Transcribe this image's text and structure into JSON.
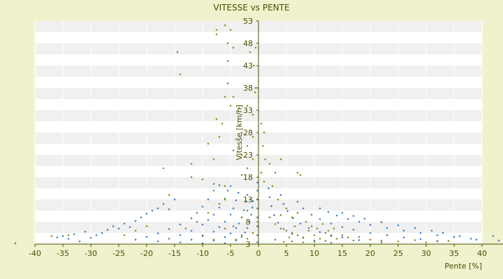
{
  "chart_data": {
    "type": "scatter",
    "title": "VITESSE vs PENTE",
    "xlabel": "Pente [%]",
    "ylabel": "Vitesse [km/h]",
    "xlim": [
      -40,
      40
    ],
    "ylim": [
      3,
      53
    ],
    "x_ticks": [
      -40,
      -35,
      -30,
      -25,
      -20,
      -15,
      -10,
      -5,
      0,
      5,
      10,
      15,
      20,
      25,
      30,
      35,
      40
    ],
    "y_ticks": [
      3,
      8,
      13,
      18,
      23,
      28,
      33,
      38,
      43,
      48,
      53
    ],
    "grid": true,
    "legend": "none",
    "colors": {
      "background": "#eff2cd",
      "plot_band_light": "#ffffff",
      "plot_band_dark": "#f0f0f0",
      "axis": "#4d4d00",
      "text": "#4d4d00",
      "series_blue": "#3a7fc4",
      "series_olive": "#8a8a1a"
    },
    "series": [
      {
        "marker": "diamond",
        "color": "#3a7fc4",
        "points": [
          [
            -43.5,
            3.2
          ],
          [
            -36,
            4.5
          ],
          [
            -35,
            4.8
          ],
          [
            -34,
            4.2
          ],
          [
            -33,
            5.2
          ],
          [
            -32,
            3.6
          ],
          [
            -31,
            5.8
          ],
          [
            -30,
            4.4
          ],
          [
            -29,
            5.0
          ],
          [
            -28,
            5.5
          ],
          [
            -27,
            6.2
          ],
          [
            -26,
            7.0
          ],
          [
            -25,
            6.5
          ],
          [
            -24,
            7.6
          ],
          [
            -23,
            6.8
          ],
          [
            -22,
            8.2
          ],
          [
            -21,
            9.0
          ],
          [
            -20,
            9.8
          ],
          [
            -19,
            10.5
          ],
          [
            -18,
            11.0
          ],
          [
            -17,
            12.0
          ],
          [
            -16,
            10.8
          ],
          [
            -15,
            13.0
          ],
          [
            -22,
            4.0
          ],
          [
            -20,
            4.6
          ],
          [
            -18,
            5.4
          ],
          [
            -16,
            6.4
          ],
          [
            -14,
            7.4
          ],
          [
            -12,
            8.8
          ],
          [
            -11,
            10.0
          ],
          [
            -10,
            11.4
          ],
          [
            -9,
            13.0
          ],
          [
            -8,
            15.0
          ],
          [
            -7,
            16.2
          ],
          [
            -18,
            3.6
          ],
          [
            -16,
            4.2
          ],
          [
            -14,
            5.0
          ],
          [
            -12,
            6.0
          ],
          [
            -10,
            7.4
          ],
          [
            -9,
            8.4
          ],
          [
            -8,
            9.6
          ],
          [
            -7,
            11.2
          ],
          [
            -6,
            13.2
          ],
          [
            -5.5,
            15.0
          ],
          [
            -5,
            16.0
          ],
          [
            -14,
            3.4
          ],
          [
            -12,
            4.0
          ],
          [
            -10,
            4.8
          ],
          [
            -8,
            5.8
          ],
          [
            -7,
            6.8
          ],
          [
            -6,
            8.0
          ],
          [
            -5,
            9.6
          ],
          [
            -4.5,
            11.0
          ],
          [
            -4,
            12.8
          ],
          [
            -3.6,
            14.5
          ],
          [
            -10,
            3.2
          ],
          [
            -8,
            3.8
          ],
          [
            -6,
            4.6
          ],
          [
            -5,
            5.4
          ],
          [
            -4,
            6.6
          ],
          [
            -3.5,
            7.6
          ],
          [
            -3,
            9.0
          ],
          [
            -2.6,
            10.6
          ],
          [
            -2.2,
            12.6
          ],
          [
            -2,
            14.0
          ],
          [
            -6,
            3.2
          ],
          [
            -4,
            3.8
          ],
          [
            -3,
            4.6
          ],
          [
            -2.4,
            5.6
          ],
          [
            -2,
            6.6
          ],
          [
            -1.6,
            8.0
          ],
          [
            -1.3,
            9.6
          ],
          [
            -1.1,
            11.2
          ],
          [
            -1,
            12.6
          ],
          [
            -0.2,
            3.4
          ],
          [
            -0.2,
            5.0
          ],
          [
            -0.2,
            7.0
          ],
          [
            -0.2,
            9.0
          ],
          [
            -0.2,
            11.0
          ],
          [
            -0.2,
            13.0
          ],
          [
            -0.2,
            15.0
          ],
          [
            -0.2,
            16.8
          ],
          [
            1.8,
            15.5
          ],
          [
            2,
            13.5
          ],
          [
            2.3,
            11.5
          ],
          [
            2.8,
            9.5
          ],
          [
            3.5,
            7.8
          ],
          [
            4.5,
            6.4
          ],
          [
            6,
            5.3
          ],
          [
            8,
            4.4
          ],
          [
            10,
            3.8
          ],
          [
            13,
            3.3
          ],
          [
            4,
            14.0
          ],
          [
            4.5,
            12.0
          ],
          [
            5.2,
            10.4
          ],
          [
            6.2,
            8.8
          ],
          [
            7.5,
            7.6
          ],
          [
            9,
            6.6
          ],
          [
            11,
            5.7
          ],
          [
            13,
            5.0
          ],
          [
            15,
            4.5
          ],
          [
            18,
            3.9
          ],
          [
            22,
            3.4
          ],
          [
            7,
            12.5
          ],
          [
            8,
            11.0
          ],
          [
            9.5,
            9.6
          ],
          [
            11,
            8.6
          ],
          [
            13,
            7.6
          ],
          [
            15,
            6.8
          ],
          [
            17,
            6.2
          ],
          [
            20,
            5.5
          ],
          [
            23,
            5.0
          ],
          [
            26,
            4.5
          ],
          [
            29,
            4.1
          ],
          [
            32,
            3.7
          ],
          [
            11,
            11.0
          ],
          [
            12.5,
            10.2
          ],
          [
            14,
            9.4
          ],
          [
            16,
            8.6
          ],
          [
            18,
            8.0
          ],
          [
            20,
            7.3
          ],
          [
            23,
            6.6
          ],
          [
            26,
            6.0
          ],
          [
            29,
            5.5
          ],
          [
            32,
            5.0
          ],
          [
            35,
            4.6
          ],
          [
            38,
            4.2
          ],
          [
            15,
            10.0
          ],
          [
            17,
            9.3
          ],
          [
            19,
            8.7
          ],
          [
            22,
            7.9
          ],
          [
            25,
            7.2
          ],
          [
            28,
            6.6
          ],
          [
            31,
            6.0
          ],
          [
            33,
            5.5
          ],
          [
            36,
            4.8
          ],
          [
            39,
            4.0
          ],
          [
            42,
            4.8
          ],
          [
            43,
            3.8
          ]
        ]
      },
      {
        "marker": "diamond",
        "color": "#8a8a1a",
        "points": [
          [
            -6,
            52
          ],
          [
            -5,
            51
          ],
          [
            -7.5,
            51
          ],
          [
            -7.5,
            50
          ],
          [
            -5.5,
            48
          ],
          [
            -4.5,
            47
          ],
          [
            -5.5,
            44
          ],
          [
            -14.5,
            46
          ],
          [
            -14,
            41
          ],
          [
            -5.5,
            39
          ],
          [
            -4.5,
            36
          ],
          [
            -6,
            36
          ],
          [
            -5,
            34
          ],
          [
            -3.5,
            33.5
          ],
          [
            -7.5,
            31
          ],
          [
            -6.5,
            30
          ],
          [
            -3,
            28
          ],
          [
            -1.5,
            46
          ],
          [
            -0.5,
            47
          ],
          [
            -0.8,
            43
          ],
          [
            -0.5,
            38
          ],
          [
            -0.6,
            37
          ],
          [
            -2,
            34
          ],
          [
            -1,
            32
          ],
          [
            -7,
            27
          ],
          [
            -9,
            25.5
          ],
          [
            -4,
            26.5
          ],
          [
            -4.5,
            24
          ],
          [
            -8,
            22
          ],
          [
            -12,
            21
          ],
          [
            -17,
            20
          ],
          [
            -12,
            18
          ],
          [
            -10,
            17.5
          ],
          [
            -8,
            16.5
          ],
          [
            -6,
            16
          ],
          [
            -3,
            18.5
          ],
          [
            -2,
            20
          ],
          [
            -1,
            22
          ],
          [
            -3,
            23
          ],
          [
            -2,
            25
          ],
          [
            -1,
            27
          ],
          [
            -6,
            13
          ],
          [
            -7,
            12
          ],
          [
            -9,
            10
          ],
          [
            -11,
            8
          ],
          [
            -13,
            6.5
          ],
          [
            -10,
            5
          ],
          [
            -8,
            4
          ],
          [
            -6,
            6.5
          ],
          [
            -4.5,
            7
          ],
          [
            -3,
            9
          ],
          [
            -2,
            10.5
          ],
          [
            -1.5,
            13
          ],
          [
            -16,
            14
          ],
          [
            -20,
            7
          ],
          [
            -22,
            6
          ],
          [
            -24,
            5
          ],
          [
            -34,
            5
          ],
          [
            -37,
            4.8
          ],
          [
            -4,
            4
          ],
          [
            -3,
            5
          ],
          [
            -2,
            4.2
          ],
          [
            -1,
            5.5
          ],
          [
            0.5,
            30
          ],
          [
            1,
            28
          ],
          [
            0.8,
            25
          ],
          [
            1.2,
            22
          ],
          [
            2,
            21
          ],
          [
            0.5,
            19
          ],
          [
            1,
            17
          ],
          [
            3,
            19
          ],
          [
            4,
            22
          ],
          [
            2.5,
            16
          ],
          [
            3.5,
            13
          ],
          [
            7,
            19
          ],
          [
            7.5,
            18.5
          ],
          [
            2,
            9
          ],
          [
            3,
            7.5
          ],
          [
            4,
            6.5
          ],
          [
            5,
            6
          ],
          [
            6,
            5.5
          ],
          [
            7,
            5
          ],
          [
            8,
            4.5
          ],
          [
            9,
            6
          ],
          [
            10,
            5
          ],
          [
            11,
            4.2
          ],
          [
            12,
            5.5
          ],
          [
            13,
            4.8
          ],
          [
            14,
            4.2
          ],
          [
            15,
            5
          ],
          [
            16,
            4.5
          ],
          [
            17,
            3.8
          ],
          [
            18,
            4.6
          ],
          [
            20,
            4
          ],
          [
            22,
            3.8
          ],
          [
            25,
            3.6
          ],
          [
            28,
            3.9
          ],
          [
            30,
            3.4
          ],
          [
            32,
            3.6
          ],
          [
            34,
            3.7
          ],
          [
            6,
            3.6
          ],
          [
            8,
            3.4
          ],
          [
            10,
            3.5
          ],
          [
            12,
            3.7
          ],
          [
            3,
            4
          ],
          [
            4.5,
            3.5
          ],
          [
            5.5,
            4.5
          ],
          [
            6.5,
            7
          ],
          [
            8.5,
            8
          ],
          [
            9.5,
            7
          ],
          [
            10.5,
            6.5
          ],
          [
            11.5,
            7.5
          ],
          [
            12.5,
            6
          ],
          [
            13.5,
            6.5
          ],
          [
            7,
            10
          ],
          [
            5,
            11
          ],
          [
            6,
            9
          ],
          [
            4,
            9.5
          ]
        ]
      }
    ]
  }
}
